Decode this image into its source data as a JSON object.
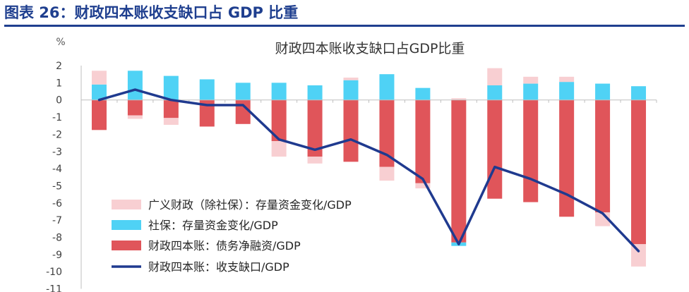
{
  "figure": {
    "title": "图表 26：财政四本账收支缺口占 GDP 比重"
  },
  "colors": {
    "heading": "#1f3f8f",
    "broad": "#f8cfd2",
    "social": "#4fd2f5",
    "debt": "#e0555a",
    "gap": "#1f3a8f",
    "axis": "#bfbfbf"
  },
  "chart_data": {
    "type": "bar",
    "title": "财政四本账收支缺口占GDP比重",
    "ylabel": "%",
    "xlabel": "",
    "ylim": [
      -11,
      2
    ],
    "yticks": [
      2,
      1,
      0,
      -1,
      -2,
      -3,
      -4,
      -5,
      -6,
      -7,
      -8,
      -9,
      -10,
      -11
    ],
    "stacked": true,
    "legend_position": "lower-left",
    "categories": [
      "",
      "",
      "",
      "",
      "",
      "",
      "",
      "",
      "",
      "",
      "",
      "",
      "",
      "",
      "",
      ""
    ],
    "series": [
      {
        "name": "广义财政（除社保）：存量资金变化/GDP",
        "kind": "bar",
        "values": [
          0.8,
          -0.2,
          -0.4,
          0,
          0,
          -0.9,
          -0.4,
          0.15,
          -0.8,
          -0.3,
          0.1,
          1.0,
          0.4,
          0.3,
          -0.8,
          -1.3
        ]
      },
      {
        "name": "社保：存量资金变化/GDP",
        "kind": "bar",
        "values": [
          0.9,
          1.7,
          1.4,
          1.2,
          1.0,
          1.0,
          0.85,
          1.15,
          1.5,
          0.7,
          -0.2,
          0.85,
          0.95,
          1.05,
          0.95,
          0.8
        ]
      },
      {
        "name": "财政四本账：债务净融资/GDP",
        "kind": "bar",
        "values": [
          -1.75,
          -0.9,
          -1.05,
          -1.55,
          -1.4,
          -2.4,
          -3.3,
          -3.6,
          -3.9,
          -4.85,
          -8.3,
          -5.75,
          -5.95,
          -6.8,
          -6.55,
          -8.4
        ]
      },
      {
        "name": "财政四本账：收支缺口/GDP",
        "kind": "line",
        "values": [
          0.0,
          0.6,
          0.0,
          -0.3,
          -0.3,
          -2.3,
          -2.9,
          -2.3,
          -3.2,
          -4.6,
          -8.4,
          -3.9,
          -4.6,
          -5.5,
          -6.6,
          -8.8
        ]
      }
    ]
  }
}
